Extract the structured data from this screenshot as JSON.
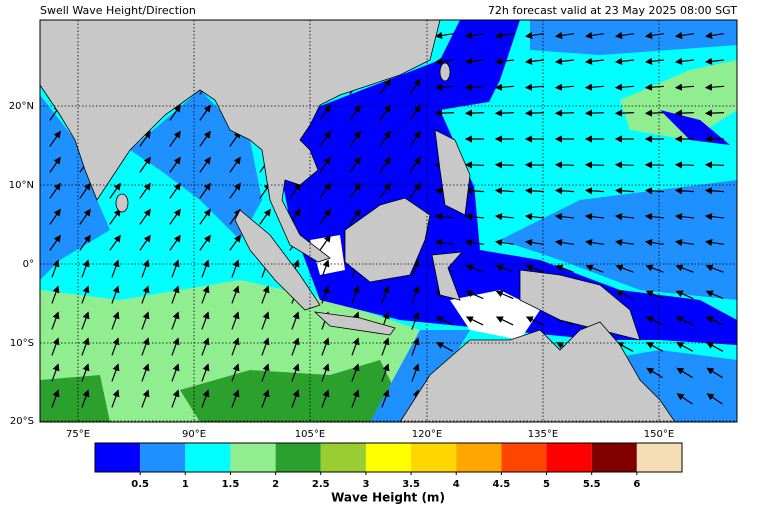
{
  "header": {
    "title": "Swell Wave Height/Direction",
    "valid": "72h forecast valid at 23 May 2025 08:00 SGT"
  },
  "map": {
    "lat_labels": [
      "20°N",
      "10°N",
      "0°",
      "10°S",
      "20°S"
    ],
    "lon_labels": [
      "75°E",
      "90°E",
      "105°E",
      "120°E",
      "135°E",
      "150°E"
    ]
  },
  "colorbar": {
    "range": [
      0,
      6.5
    ],
    "colors": [
      "#0000ff",
      "#1e90ff",
      "#00ffff",
      "#90ee90",
      "#2ca02c",
      "#9acd32",
      "#ffff00",
      "#ffd700",
      "#ffa500",
      "#ff4500",
      "#ff0000",
      "#800000",
      "#f5deb3"
    ],
    "ticks": [
      0.5,
      1,
      1.5,
      2,
      2.5,
      3,
      3.5,
      4,
      4.5,
      5,
      5.5,
      6
    ],
    "label": "Wave Height (m)"
  }
}
